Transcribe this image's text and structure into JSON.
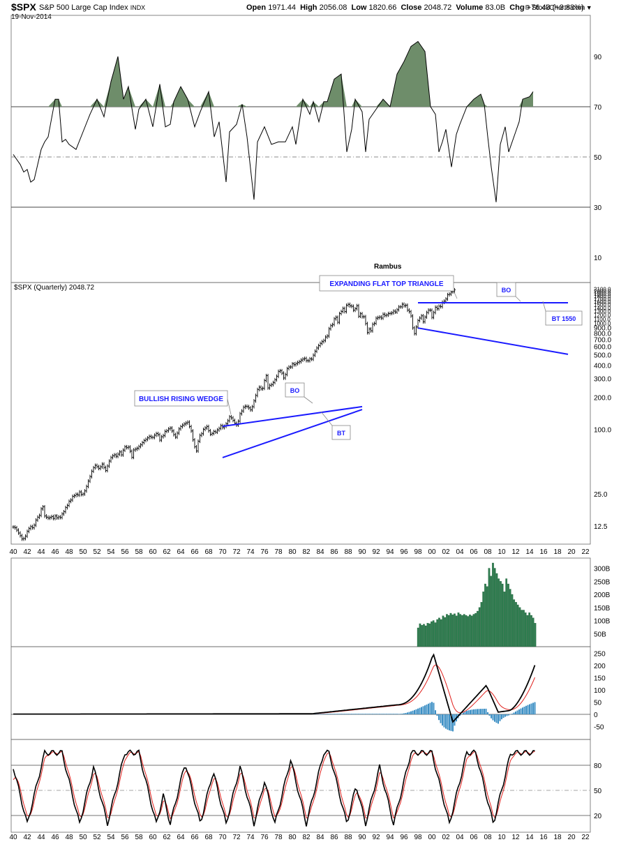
{
  "header": {
    "symbol": "$SPX",
    "name": "S&P 500 Large Cap Index",
    "exchange": "INDX",
    "date": "19-Nov-2014",
    "open_label": "Open",
    "open": "1971.44",
    "high_label": "High",
    "high": "2056.08",
    "low_label": "Low",
    "low": "1820.66",
    "close_label": "Close",
    "close": "2048.72",
    "volume_label": "Volume",
    "volume": "83.0B",
    "chg_label": "Chg",
    "chg": "+76.43 (+3.88%)",
    "credit": "© StockCharts.com"
  },
  "chart_data": [
    {
      "panel": "rsi-top",
      "type": "line",
      "y_ticks": [
        90,
        70,
        50,
        30,
        10
      ],
      "ylim": [
        0,
        100
      ],
      "reference_lines": [
        70,
        50,
        30
      ],
      "fill_above": 70,
      "fill_color": "#6e8d6a",
      "x": [
        1940,
        1941,
        1941.5,
        1942,
        1942.5,
        1943,
        1944,
        1944.5,
        1945,
        1946,
        1946.5,
        1947,
        1947.5,
        1948,
        1949,
        1950,
        1951,
        1952,
        1953,
        1954,
        1955,
        1955.8,
        1956.5,
        1957.5,
        1958,
        1959,
        1960,
        1961,
        1961.8,
        1962.5,
        1963,
        1964,
        1965,
        1966,
        1966.8,
        1968,
        1968.8,
        1969.5,
        1970.5,
        1971,
        1972,
        1972.8,
        1973.5,
        1974.5,
        1975,
        1976,
        1977,
        1978,
        1979,
        1980,
        1980.5,
        1981.5,
        1982.5,
        1983,
        1983.8,
        1984.5,
        1985,
        1986,
        1987,
        1987.8,
        1988.5,
        1989,
        1990,
        1990.5,
        1991,
        1992,
        1993,
        1994,
        1995,
        1996,
        1997,
        1998,
        1999,
        1999.8,
        2000.5,
        2001,
        2001.5,
        2002,
        2002.8,
        2003.5,
        2004,
        2005,
        2006,
        2007,
        2007.5,
        2008,
        2008.5,
        2009.2,
        2009.8,
        2010.5,
        2011,
        2012,
        2012.5,
        2013,
        2014,
        2014.5
      ],
      "series": [
        {
          "values": [
            51,
            47,
            44,
            45,
            40,
            41,
            53,
            56,
            58,
            73,
            73,
            56,
            57,
            55,
            53,
            60,
            67,
            73,
            66,
            80,
            90,
            73,
            78,
            61,
            69,
            73,
            62,
            79,
            62,
            63,
            72,
            78,
            73,
            62,
            68,
            76,
            58,
            64,
            40,
            60,
            63,
            71,
            58,
            33,
            56,
            62,
            55,
            56,
            56,
            62,
            55,
            73,
            67,
            72,
            64,
            72,
            72,
            81,
            83,
            52,
            61,
            73,
            68,
            52,
            65,
            69,
            73,
            70,
            83,
            88,
            94,
            96,
            92,
            70,
            67,
            52,
            56,
            61,
            46,
            59,
            63,
            70,
            73,
            75,
            71,
            58,
            46,
            32,
            55,
            62,
            52,
            60,
            64,
            73,
            74,
            76
          ]
        }
      ]
    },
    {
      "panel": "price",
      "type": "candlestick",
      "title": "$SPX (Quarterly) 2048.72",
      "scale": "log",
      "ylim": [
        8.5,
        2400
      ],
      "y_ticks": [
        12.5,
        25.0,
        100.0,
        200.0,
        300.0,
        400.0,
        500.0,
        600.0,
        700.0,
        800.0,
        900.0,
        1000.0,
        1100.0,
        1200.0,
        1300.0,
        1400.0,
        1500.0,
        1600.0,
        1700.0,
        1800.0,
        1900.0,
        2000.0,
        2100.0
      ],
      "x_ticks": [
        "40",
        "42",
        "44",
        "46",
        "48",
        "50",
        "52",
        "54",
        "56",
        "58",
        "60",
        "62",
        "64",
        "66",
        "68",
        "70",
        "72",
        "74",
        "76",
        "78",
        "80",
        "82",
        "84",
        "86",
        "88",
        "90",
        "92",
        "94",
        "96",
        "98",
        "00",
        "02",
        "04",
        "06",
        "08",
        "10",
        "12",
        "14",
        "16",
        "18",
        "20",
        "22"
      ],
      "x_keys": [
        1940,
        1942,
        1944,
        1946,
        1948,
        1950,
        1952,
        1954,
        1956,
        1958,
        1960,
        1962,
        1964,
        1966,
        1968,
        1970,
        1972,
        1974,
        1976,
        1978,
        1980,
        1982,
        1984,
        1986,
        1988,
        1990,
        1992,
        1994,
        1996,
        1998,
        2000,
        2002,
        2004,
        2006,
        2008,
        2010,
        2012,
        2014,
        2016,
        2018,
        2020,
        2022
      ],
      "closes": [
        12.3,
        12.1,
        11.5,
        10.8,
        10.2,
        9.5,
        9.6,
        10.1,
        11.2,
        11.9,
        12.4,
        12.1,
        12.8,
        14.3,
        15.2,
        15.8,
        18.2,
        19.0,
        15.6,
        15.2,
        14.9,
        15.1,
        15.4,
        14.8,
        15.6,
        15.0,
        15.3,
        15.1,
        16.3,
        17.1,
        18.7,
        19.6,
        21.4,
        22.0,
        23.8,
        24.2,
        24.9,
        24.5,
        26.2,
        24.8,
        25.1,
        26.8,
        29.5,
        33.1,
        36.5,
        41.0,
        44.2,
        46.5,
        45.2,
        43.6,
        45.1,
        47.8,
        44.4,
        41.6,
        45.8,
        51.0,
        55.0,
        57.2,
        58.4,
        56.5,
        59.2,
        62.1,
        58.3,
        64.6,
        69.4,
        68.1,
        69.0,
        63.1,
        55.3,
        64.8,
        66.0,
        67.2,
        69.8,
        72.4,
        76.0,
        79.5,
        81.4,
        84.1,
        86.8,
        85.2,
        85.0,
        89.1,
        92.4,
        90.2,
        80.1,
        86.2,
        88.5,
        96.7,
        98.0,
        102.1,
        103.9,
        97.6,
        90.2,
        85.5,
        93.2,
        102.1,
        107.2,
        110.8,
        113.5,
        116.0,
        118.1,
        107.4,
        97.6,
        80.6,
        69.4,
        63.5,
        78.3,
        88.8,
        92.0,
        100.9,
        104.3,
        107.5,
        98.0,
        91.0,
        92.6,
        96.4,
        95.3,
        99.9,
        103.2,
        109.5,
        105.1,
        107.9,
        114.1,
        121.7,
        132.4,
        129.5,
        122.5,
        115.4,
        111.1,
        120.5,
        141.8,
        150.2,
        162.8,
        166.4,
        165.1,
        160.5,
        153.8,
        164.9,
        186.8,
        210.0,
        238.9,
        250.8,
        242.1,
        245.3,
        290.0,
        321.8,
        247.1,
        261.5,
        265.8,
        277.7,
        294.9,
        317.8,
        353.4,
        358.0,
        339.9,
        306.0,
        330.2,
        375.2,
        387.9,
        388.5,
        415.3,
        408.1,
        417.8,
        427.5,
        435.8,
        450.5,
        460.3,
        466.5,
        445.8,
        444.3,
        462.7,
        459.3,
        500.7,
        544.8,
        584.4,
        615.9,
        645.5,
        670.6,
        687.3,
        740.7,
        757.1,
        885.1,
        947.3,
        970.4,
        1098.7,
        1133.8,
        1017.0,
        1229.2,
        1286.4,
        1372.7,
        1282.7,
        1469.3,
        1498.6,
        1452.4,
        1436.5,
        1320.3,
        1366.0,
        1454.6,
        1160.3,
        1224.4,
        1148.1,
        1147.4,
        989.8,
        815.3,
        879.8,
        848.2,
        974.5,
        996.0,
        1111.9,
        1126.2,
        1140.8,
        1114.6,
        1211.9,
        1180.6,
        1191.3,
        1228.8,
        1234.2,
        1248.3,
        1294.8,
        1270.2,
        1335.8,
        1418.3,
        1420.9,
        1503.3,
        1455.3,
        1468.4,
        1322.7,
        1280.0,
        1166.4,
        903.3,
        797.9,
        919.3,
        1057.1,
        1115.1,
        1169.4,
        1030.7,
        1141.2,
        1257.6,
        1325.8,
        1320.6,
        1131.4,
        1257.6,
        1408.5,
        1362.2,
        1440.7,
        1426.2,
        1569.2,
        1606.3,
        1681.6,
        1848.4,
        1872.3,
        1960.2,
        1972.3,
        2048.7
      ]
    },
    {
      "panel": "price-annotations",
      "labels": [
        "Rambus",
        "EXPANDING FLAT TOP TRIANGLE",
        "BULLISH RISING WEDGE",
        "BO",
        "BT",
        "BO",
        "BT 1550"
      ]
    },
    {
      "panel": "volume",
      "type": "bar",
      "y_ticks": [
        "300B",
        "250B",
        "200B",
        "150B",
        "100B",
        "50B"
      ],
      "ylim": [
        0,
        340
      ],
      "x_start": 1998,
      "values": [
        72,
        88,
        82,
        86,
        80,
        90,
        88,
        96,
        100,
        92,
        104,
        110,
        104,
        118,
        112,
        124,
        120,
        128,
        122,
        126,
        118,
        130,
        124,
        120,
        124,
        120,
        116,
        122,
        118,
        124,
        128,
        136,
        150,
        170,
        210,
        240,
        230,
        300,
        270,
        320,
        300,
        280,
        260,
        250,
        240,
        210,
        260,
        240,
        220,
        200,
        180,
        170,
        160,
        150,
        140,
        140,
        130,
        120,
        130,
        120,
        110,
        90
      ]
    },
    {
      "panel": "macd",
      "type": "line",
      "y_ticks": [
        250,
        200,
        150,
        100,
        50,
        0,
        -50
      ],
      "ylim": [
        -80,
        270
      ]
    },
    {
      "panel": "stochastic",
      "type": "line",
      "y_ticks": [
        80,
        50,
        20
      ],
      "ylim": [
        0,
        100
      ],
      "reference_lines": [
        80,
        50,
        20
      ]
    }
  ]
}
